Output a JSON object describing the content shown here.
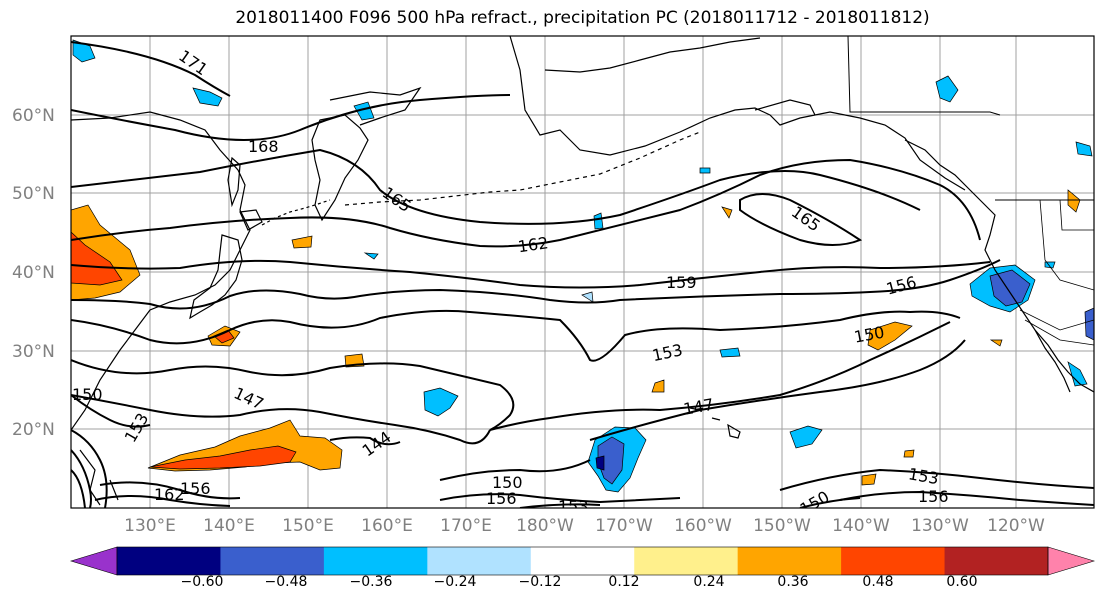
{
  "title": "2018011400 F096 500 hPa refract., precipitation PC (2018011712 - 2018011812)",
  "latitude_labels": [
    "60°N",
    "50°N",
    "40°N",
    "30°N",
    "20°N"
  ],
  "longitude_labels": [
    "130°E",
    "140°E",
    "150°E",
    "160°E",
    "170°E",
    "180°W",
    "170°W",
    "160°W",
    "150°W",
    "140°W",
    "130°W",
    "120°W"
  ],
  "contour_labels": [
    "171",
    "168",
    "165",
    "162",
    "159",
    "156",
    "153",
    "150",
    "147",
    "144",
    "165",
    "150",
    "153",
    "156",
    "150",
    "156",
    "153",
    "162",
    "156",
    "150",
    "147",
    "153"
  ],
  "colorbar": {
    "tick_labels": [
      "−0.60",
      "−0.48",
      "−0.36",
      "−0.24",
      "−0.12",
      "0.12",
      "0.24",
      "0.36",
      "0.48",
      "0.60"
    ],
    "colors": [
      "#9932cc",
      "#000080",
      "#3a5fcd",
      "#00bfff",
      "#b0e2ff",
      "#ffffff",
      "#fff08c",
      "#ffa500",
      "#ff4500",
      "#b22222",
      "#ff82ab"
    ]
  },
  "colors": {
    "contour": "#000000",
    "grid": "#a0a0a0",
    "axis_labels": "#808080",
    "coastline": "#000000"
  }
}
